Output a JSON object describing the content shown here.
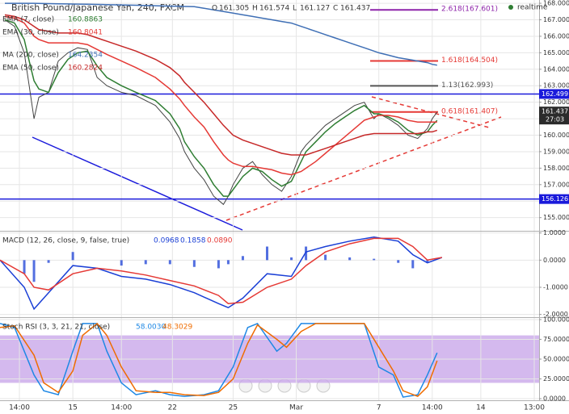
{
  "chart_data": [
    {
      "type": "line",
      "title": "British Pound/Japanese Yen, 240, FXCM",
      "ohlc": [
        {
          "label": "O",
          "value": 161.305
        },
        {
          "label": "H",
          "value": 161.574
        },
        {
          "label": "L",
          "value": 161.127
        },
        {
          "label": "C",
          "value": 161.437
        }
      ],
      "status": "realtime",
      "xlim": [
        0,
        111
      ],
      "ylim": [
        154.2,
        168.2
      ],
      "yticks": [
        {
          "value": 155,
          "label": "155.000"
        },
        {
          "value": 156,
          "label": "156.000"
        },
        {
          "value": 157,
          "label": "157.000"
        },
        {
          "value": 158,
          "label": "158.000"
        },
        {
          "value": 159,
          "label": "159.000"
        },
        {
          "value": 160,
          "label": "160.000"
        },
        {
          "value": 161,
          "label": "161.000"
        },
        {
          "value": 162,
          "label": "162.000"
        },
        {
          "value": 163,
          "label": "163.000"
        },
        {
          "value": 164,
          "label": "164.000"
        },
        {
          "value": 165,
          "label": "165.000"
        },
        {
          "value": 166,
          "label": "166.000"
        },
        {
          "value": 167,
          "label": "167.000"
        },
        {
          "value": 168,
          "label": "168.000"
        }
      ],
      "grid": true,
      "x": [
        1,
        3,
        5,
        6,
        7,
        8,
        10,
        12,
        14,
        16,
        18,
        20,
        22,
        25,
        28,
        32,
        35,
        37,
        38,
        40,
        42,
        44,
        46,
        47,
        48,
        50,
        52,
        54,
        56,
        58,
        60,
        62,
        63,
        65,
        67,
        69,
        71,
        73,
        75,
        77,
        78,
        80,
        82,
        84,
        86,
        88,
        89,
        90
      ],
      "series": [
        {
          "color": "#444444",
          "values": [
            167.0,
            166.6,
            165.0,
            163.0,
            161.0,
            162.3,
            162.6,
            164.5,
            165.0,
            165.3,
            165.2,
            163.5,
            163.0,
            162.6,
            162.4,
            161.8,
            160.8,
            159.8,
            159.0,
            158.0,
            157.3,
            156.3,
            155.8,
            156.3,
            157.0,
            158.0,
            158.4,
            157.6,
            157.0,
            156.6,
            157.5,
            159.0,
            159.4,
            160.0,
            160.6,
            161.0,
            161.4,
            161.8,
            162.0,
            161.0,
            161.3,
            161.0,
            160.6,
            160.0,
            159.8,
            160.4,
            161.0,
            161.4
          ]
        },
        {
          "name": "EMA (7, close)",
          "legend_value": 160.8863,
          "color": "#2e7d32",
          "values": [
            167.0,
            166.8,
            165.8,
            164.5,
            163.3,
            162.8,
            162.6,
            163.8,
            164.6,
            165.0,
            165.1,
            164.2,
            163.5,
            163.0,
            162.6,
            162.1,
            161.3,
            160.4,
            159.6,
            158.7,
            158.0,
            157.0,
            156.3,
            156.3,
            156.7,
            157.5,
            158.0,
            157.8,
            157.3,
            156.9,
            157.2,
            158.4,
            159.0,
            159.6,
            160.2,
            160.7,
            161.1,
            161.5,
            161.8,
            161.3,
            161.3,
            161.1,
            160.8,
            160.3,
            160.0,
            160.2,
            160.6,
            160.9
          ]
        },
        {
          "name": "EMA (30, close)",
          "legend_value": 160.8041,
          "color": "#e53935",
          "values": [
            167.2,
            167.1,
            166.8,
            166.4,
            166.0,
            165.8,
            165.6,
            165.6,
            165.6,
            165.6,
            165.5,
            165.2,
            164.9,
            164.5,
            164.1,
            163.5,
            162.8,
            162.2,
            161.8,
            161.1,
            160.5,
            159.6,
            158.8,
            158.5,
            158.3,
            158.1,
            158.1,
            158.0,
            157.9,
            157.7,
            157.6,
            157.8,
            158.0,
            158.4,
            158.9,
            159.4,
            159.9,
            160.4,
            160.9,
            161.1,
            161.2,
            161.2,
            161.1,
            160.9,
            160.8,
            160.8,
            160.8,
            160.8
          ]
        },
        {
          "name": "MA (200, close)",
          "legend_value": 164.2354,
          "color": "#3f6fb5",
          "values": [
            168.0,
            168.0,
            168.0,
            168.0,
            168.0,
            167.99,
            167.98,
            167.97,
            167.96,
            167.95,
            167.94,
            167.93,
            167.92,
            167.9,
            167.88,
            167.85,
            167.83,
            167.82,
            167.81,
            167.8,
            167.7,
            167.6,
            167.5,
            167.45,
            167.4,
            167.3,
            167.2,
            167.1,
            167.0,
            166.9,
            166.8,
            166.6,
            166.5,
            166.3,
            166.1,
            165.9,
            165.7,
            165.5,
            165.3,
            165.1,
            165.0,
            164.85,
            164.7,
            164.6,
            164.5,
            164.4,
            164.3,
            164.25
          ]
        },
        {
          "name": "EMA (50, close)",
          "legend_value": 160.2824,
          "color": "#c62828",
          "values": [
            167.3,
            167.2,
            167.0,
            166.8,
            166.6,
            166.4,
            166.3,
            166.2,
            166.2,
            166.2,
            166.1,
            165.9,
            165.7,
            165.4,
            165.1,
            164.6,
            164.1,
            163.6,
            163.2,
            162.6,
            162.0,
            161.3,
            160.6,
            160.3,
            160.0,
            159.7,
            159.5,
            159.3,
            159.1,
            158.9,
            158.8,
            158.8,
            158.8,
            159.0,
            159.2,
            159.4,
            159.6,
            159.8,
            160.0,
            160.1,
            160.1,
            160.1,
            160.1,
            160.1,
            160.1,
            160.2,
            160.2,
            160.3
          ]
        }
      ],
      "levels": [
        {
          "value": 162.499,
          "label": "162.499",
          "color": "#1a1adb"
        },
        {
          "value": 156.126,
          "label": "156.126",
          "color": "#1a1adb"
        }
      ],
      "fib": [
        {
          "label": "2.618(167.601)",
          "value": 167.601,
          "color": "#8e24aa"
        },
        {
          "label": "1.618(164.504)",
          "value": 164.504,
          "color": "#e53935"
        },
        {
          "label": "1.13(162.993)",
          "value": 162.993,
          "color": "#555555"
        },
        {
          "label": "0.618(161.407)",
          "value": 161.407,
          "color": "#e53935"
        }
      ],
      "last_price": {
        "value": 161.437,
        "label": "161.437",
        "countdown": "27:03"
      }
    },
    {
      "type": "line",
      "title": "MACD (12, 26, close, 9, false, true)",
      "legend_values": [
        {
          "value": 0.0968,
          "color": "#1a3fd6"
        },
        {
          "value": 0.1858,
          "color": "#1a3fd6"
        },
        {
          "value": 0.089,
          "label": "0.0890",
          "color": "#e53935"
        }
      ],
      "xlim": [
        0,
        111
      ],
      "ylim": [
        -2.1,
        1.05
      ],
      "yticks": [
        {
          "value": 1,
          "label": "1.0000"
        },
        {
          "value": 0,
          "label": "0.0000"
        },
        {
          "value": -1,
          "label": "-1.0000"
        },
        {
          "value": -2,
          "label": "-2.0000"
        }
      ],
      "grid": true,
      "x": [
        0,
        5,
        7,
        10,
        15,
        20,
        25,
        30,
        35,
        40,
        45,
        47,
        50,
        55,
        60,
        63,
        67,
        72,
        77,
        82,
        85,
        88,
        91
      ],
      "series": [
        {
          "type": "bar",
          "color": "#1a3fd6",
          "values": [
            0.0,
            -0.5,
            -0.8,
            -0.1,
            0.3,
            0.0,
            -0.2,
            -0.15,
            -0.15,
            -0.25,
            -0.3,
            -0.15,
            0.15,
            0.5,
            0.1,
            0.5,
            0.2,
            0.1,
            0.05,
            -0.1,
            -0.3,
            -0.1,
            0.0
          ]
        },
        {
          "color": "#1a3fd6",
          "values": [
            0.0,
            -1.0,
            -1.8,
            -1.2,
            -0.2,
            -0.3,
            -0.6,
            -0.7,
            -0.9,
            -1.2,
            -1.6,
            -1.75,
            -1.4,
            -0.5,
            -0.6,
            0.3,
            0.5,
            0.7,
            0.85,
            0.7,
            0.2,
            -0.1,
            0.1
          ]
        },
        {
          "color": "#e53935",
          "values": [
            0.0,
            -0.5,
            -1.0,
            -1.1,
            -0.5,
            -0.3,
            -0.4,
            -0.55,
            -0.75,
            -0.95,
            -1.3,
            -1.6,
            -1.55,
            -1.0,
            -0.7,
            -0.2,
            0.3,
            0.6,
            0.8,
            0.8,
            0.5,
            0.0,
            0.1
          ]
        }
      ]
    },
    {
      "type": "line",
      "title": "Stoch RSI (3, 3, 21, 21, close)",
      "legend_values": [
        {
          "value": 58.003,
          "label": "58.0030",
          "color": "#1e88e5"
        },
        {
          "value": 48.3029,
          "color": "#ef6c00"
        }
      ],
      "xlim": [
        0,
        111
      ],
      "ylim": [
        -2,
        102
      ],
      "yticks": [
        {
          "value": 0,
          "label": "0.0000"
        },
        {
          "value": 25,
          "label": "25.0000"
        },
        {
          "value": 50,
          "label": "50.0000"
        },
        {
          "value": 75,
          "label": "75.0000"
        },
        {
          "value": 100,
          "label": "100.0000"
        }
      ],
      "grid": true,
      "band": [
        20,
        80
      ],
      "band_color": "#c9a8ea",
      "xticks": [
        {
          "value": 4,
          "label": "14:00"
        },
        {
          "value": 15,
          "label": "15"
        },
        {
          "value": 25,
          "label": "14:00"
        },
        {
          "value": 35.5,
          "label": "22"
        },
        {
          "value": 48,
          "label": "25"
        },
        {
          "value": 61,
          "label": "Mar"
        },
        {
          "value": 78,
          "label": "7"
        },
        {
          "value": 89,
          "label": "14:00"
        },
        {
          "value": 99,
          "label": "14"
        },
        {
          "value": 110,
          "label": "13:00"
        }
      ],
      "x": [
        0,
        3,
        7,
        9,
        12,
        15,
        17,
        20,
        22,
        25,
        28,
        32,
        35,
        38,
        42,
        45,
        48,
        51,
        53,
        57,
        59,
        62,
        65,
        68,
        72,
        75,
        78,
        81,
        83,
        86,
        88,
        90
      ],
      "series": [
        {
          "color": "#1e88e5",
          "values": [
            95,
            90,
            30,
            10,
            5,
            60,
            95,
            95,
            60,
            20,
            5,
            10,
            5,
            3,
            5,
            10,
            40,
            90,
            95,
            60,
            70,
            95,
            95,
            95,
            95,
            95,
            40,
            30,
            2,
            5,
            30,
            58
          ]
        },
        {
          "color": "#ef6c00",
          "values": [
            90,
            92,
            55,
            20,
            8,
            35,
            80,
            95,
            80,
            40,
            10,
            8,
            8,
            5,
            4,
            8,
            25,
            70,
            93,
            75,
            65,
            85,
            95,
            95,
            95,
            95,
            65,
            35,
            10,
            3,
            15,
            48
          ]
        }
      ]
    }
  ]
}
